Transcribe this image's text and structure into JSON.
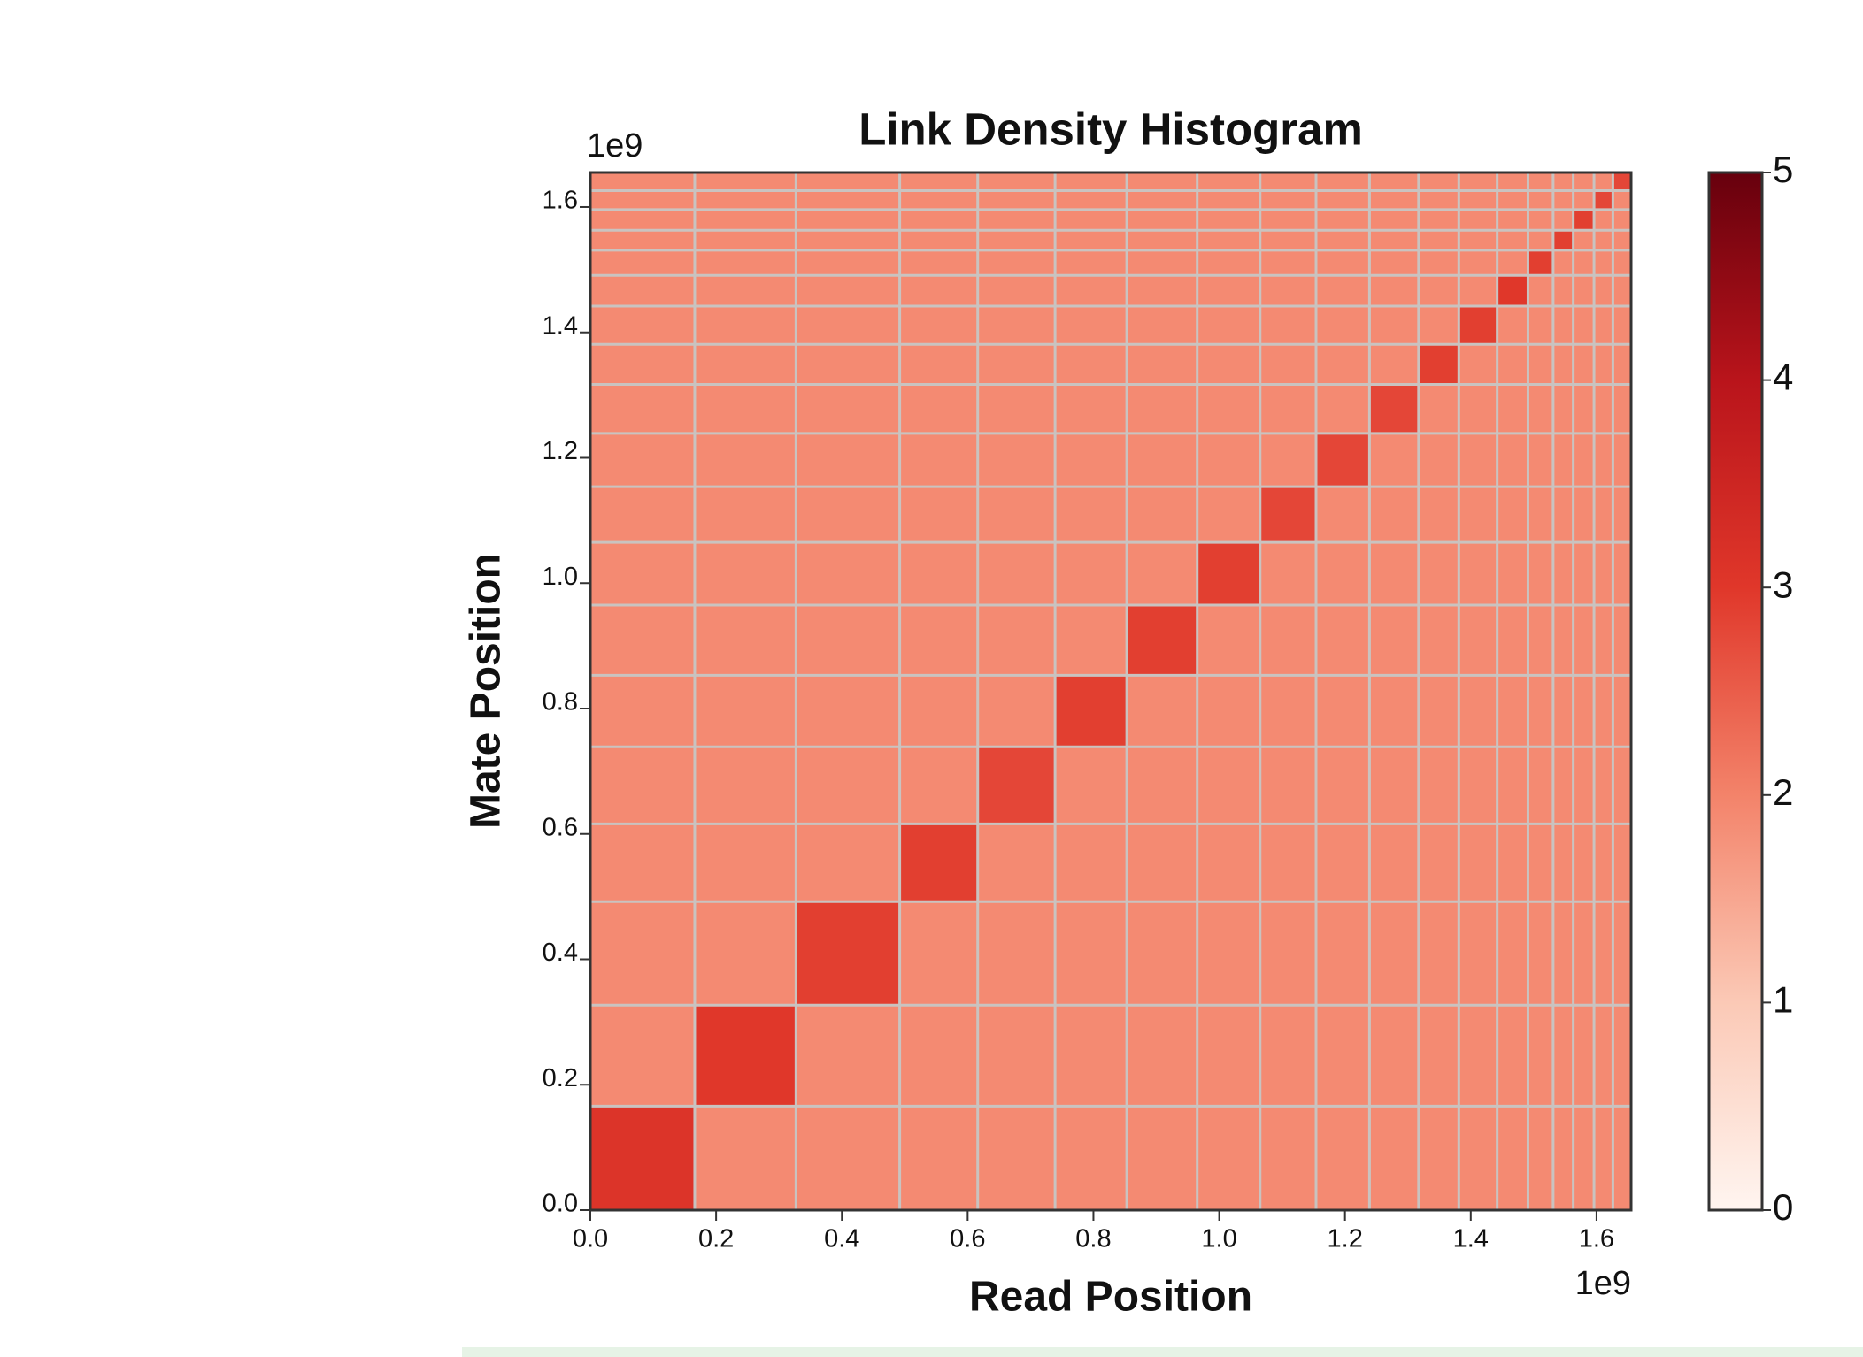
{
  "chart_data": {
    "type": "heatmap",
    "title": "Link Density Histogram",
    "x_label": "Read Position",
    "y_label": "Mate Position",
    "x_offset_label": "1e9",
    "y_offset_label": "1e9",
    "xlim": [
      0,
      1.655
    ],
    "ylim": [
      0,
      1.655
    ],
    "xticks": [
      {
        "value": 0,
        "label": "0.0"
      },
      0.2,
      0.4,
      0.6,
      0.8,
      {
        "value": 1,
        "label": "1.0"
      },
      1.2,
      1.4,
      1.6
    ],
    "yticks": [
      {
        "value": 0,
        "label": "0.0"
      },
      0.2,
      0.4,
      0.6,
      0.8,
      {
        "value": 1,
        "label": "1.0"
      },
      1.2,
      1.4,
      1.6
    ],
    "scaffold_edges": [
      0,
      0.166,
      0.327,
      0.492,
      0.616,
      0.739,
      0.853,
      0.965,
      1.065,
      1.154,
      1.239,
      1.317,
      1.381,
      1.442,
      1.491,
      1.531,
      1.563,
      1.596,
      1.626,
      1.655
    ],
    "diagonal_values": [
      3.1,
      3.0,
      2.9,
      2.9,
      2.8,
      2.9,
      2.9,
      2.9,
      2.8,
      2.8,
      2.8,
      2.9,
      2.9,
      3.0,
      2.9,
      2.9,
      2.9,
      2.8,
      2.8
    ],
    "background_value": 1.9,
    "clim": [
      0,
      5
    ],
    "cticks": [
      0,
      1,
      2,
      3,
      4,
      5
    ],
    "colors": [
      "#fff5f0",
      "#fbc9b6",
      "#f3836a",
      "#e0372a",
      "#b9141b",
      "#67000d"
    ],
    "grid_color": "#c9c3c0"
  }
}
